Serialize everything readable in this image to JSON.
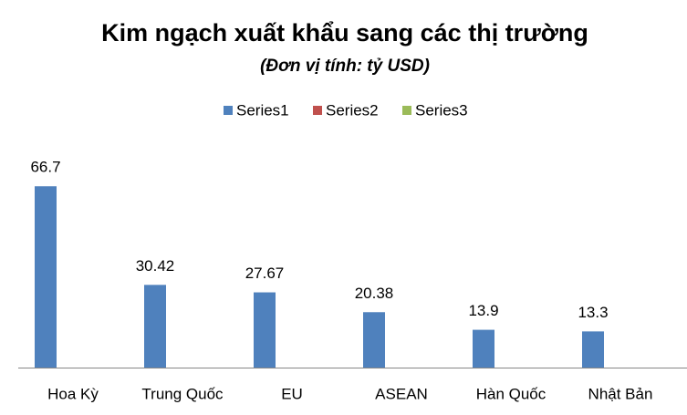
{
  "chart_data": {
    "type": "bar",
    "title": "Kim ngạch xuất khẩu sang các thị trường",
    "subtitle": "(Đơn vị tính: tỷ USD)",
    "categories": [
      "Hoa Kỳ",
      "Trung Quốc",
      "EU",
      "ASEAN",
      "Hàn Quốc",
      "Nhật Bản"
    ],
    "series": [
      {
        "name": "Series1",
        "color": "#4f81bd",
        "values": [
          66.7,
          30.42,
          27.67,
          20.38,
          13.9,
          13.3
        ]
      },
      {
        "name": "Series2",
        "color": "#c0504d",
        "values": [
          null,
          null,
          null,
          null,
          null,
          null
        ]
      },
      {
        "name": "Series3",
        "color": "#9bbb59",
        "values": [
          null,
          null,
          null,
          null,
          null,
          null
        ]
      }
    ],
    "ylim": [
      0,
      70
    ],
    "legend": "top"
  }
}
